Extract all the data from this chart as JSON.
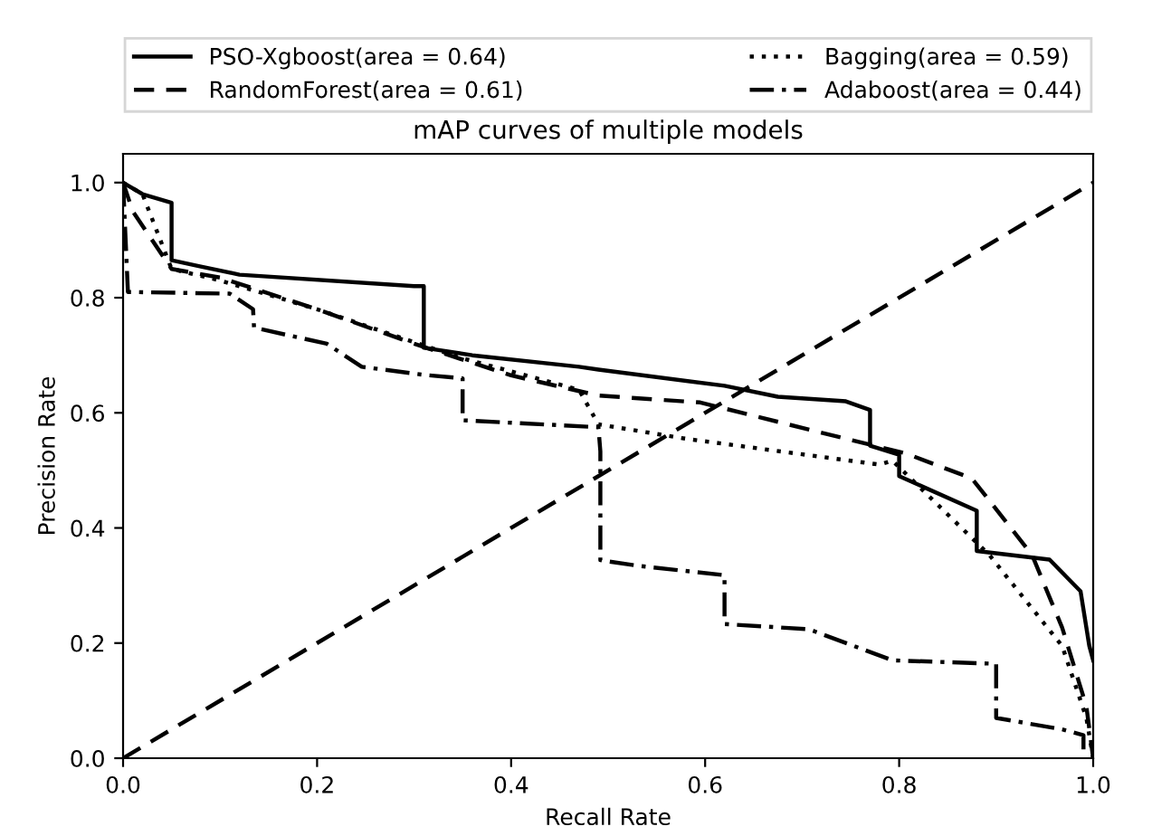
{
  "chart_data": {
    "type": "line",
    "title": "mAP curves of multiple models",
    "xlabel": "Recall Rate",
    "ylabel": "Precision Rate",
    "xlim": [
      0,
      1
    ],
    "ylim": [
      0,
      1.05
    ],
    "xticks": [
      {
        "value": 0,
        "label": "0.0"
      },
      0.2,
      0.4,
      0.6,
      0.8,
      {
        "value": 1,
        "label": "1.0"
      }
    ],
    "yticks": [
      {
        "value": 0,
        "label": "0.0"
      },
      0.2,
      0.4,
      0.6,
      0.8,
      {
        "value": 1,
        "label": "1.0"
      }
    ],
    "grid": false,
    "legend": "top",
    "marker": "none",
    "series": [
      {
        "name": "PSO-Xgboost(area = 0.64)",
        "color": "#000000",
        "line_style": "solid",
        "x": [
          0,
          0.02,
          0.05,
          0.05,
          0.078,
          0.12,
          0.3,
          0.31,
          0.31,
          0.36,
          0.47,
          0.49,
          0.62,
          0.675,
          0.745,
          0.77,
          0.77,
          0.8,
          0.8,
          0.88,
          0.88,
          0.955,
          0.987,
          0.996,
          1.0
        ],
        "values": [
          1.0,
          0.98,
          0.965,
          0.865,
          0.855,
          0.84,
          0.82,
          0.82,
          0.713,
          0.7,
          0.68,
          0.675,
          0.647,
          0.628,
          0.62,
          0.605,
          0.543,
          0.527,
          0.49,
          0.43,
          0.36,
          0.345,
          0.29,
          0.195,
          0.17
        ]
      },
      {
        "name": "RandomForest(area = 0.61)",
        "color": "#000000",
        "line_style": "dashed",
        "x": [
          0,
          0.01,
          0.05,
          0.1,
          0.2,
          0.3,
          0.4,
          0.49,
          0.595,
          0.745,
          0.806,
          0.875,
          0.937,
          0.968,
          0.993,
          1.0
        ],
        "values": [
          1.0,
          0.95,
          0.85,
          0.835,
          0.78,
          0.72,
          0.665,
          0.63,
          0.618,
          0.555,
          0.53,
          0.486,
          0.353,
          0.227,
          0.09,
          0.0
        ]
      },
      {
        "name": "Bagging(area = 0.59)",
        "color": "#000000",
        "line_style": "dotted",
        "x": [
          0,
          0.02,
          0.05,
          0.1,
          0.2,
          0.345,
          0.47,
          0.49,
          0.58,
          0.78,
          0.793,
          0.893,
          0.968,
          0.993,
          1.0
        ],
        "values": [
          1.0,
          0.98,
          0.85,
          0.83,
          0.78,
          0.697,
          0.64,
          0.58,
          0.555,
          0.51,
          0.517,
          0.353,
          0.195,
          0.07,
          0.0
        ]
      },
      {
        "name": "Adaboost(area = 0.44)",
        "color": "#000000",
        "line_style": "dashdot",
        "x": [
          0,
          0.005,
          0.11,
          0.134,
          0.135,
          0.21,
          0.246,
          0.31,
          0.35,
          0.35,
          0.49,
          0.492,
          0.492,
          0.532,
          0.62,
          0.62,
          0.707,
          0.793,
          0.9,
          0.9,
          0.968,
          0.99,
          0.99
        ],
        "values": [
          1.0,
          0.81,
          0.807,
          0.78,
          0.748,
          0.72,
          0.68,
          0.666,
          0.66,
          0.587,
          0.575,
          0.533,
          0.344,
          0.334,
          0.318,
          0.233,
          0.224,
          0.17,
          0.164,
          0.07,
          0.05,
          0.04,
          0.0
        ]
      },
      {
        "color": "#000000",
        "line_style": "dashed",
        "x": [
          0,
          1
        ],
        "values": [
          0,
          1
        ]
      }
    ]
  }
}
